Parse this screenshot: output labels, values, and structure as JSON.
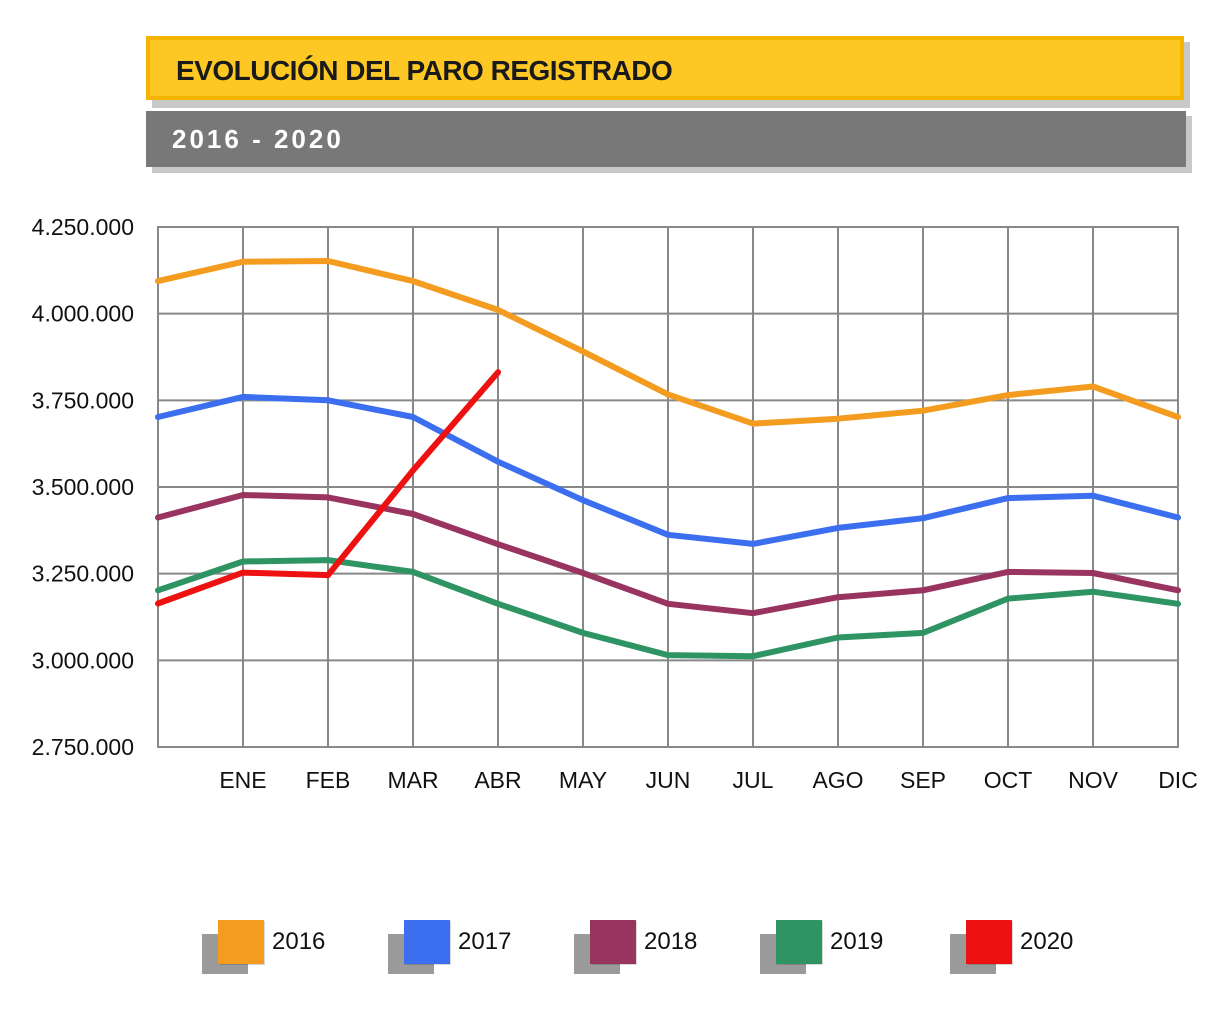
{
  "header": {
    "title": "EVOLUCIÓN DEL PARO REGISTRADO",
    "subtitle": "2016 - 2020"
  },
  "chart_data": {
    "type": "line",
    "title": "EVOLUCIÓN DEL PARO REGISTRADO",
    "subtitle": "2016 - 2020",
    "xlabel": "",
    "ylabel": "",
    "ylim": [
      2750000,
      4250000
    ],
    "y_ticks": [
      {
        "value": 2750000,
        "label": "2.750.000"
      },
      {
        "value": 3000000,
        "label": "3.000.000"
      },
      {
        "value": 3250000,
        "label": "3.250.000"
      },
      {
        "value": 3500000,
        "label": "3.500.000"
      },
      {
        "value": 3750000,
        "label": "3.750.000"
      },
      {
        "value": 4000000,
        "label": "4.000.000"
      },
      {
        "value": 4250000,
        "label": "4.250.000"
      }
    ],
    "categories": [
      "",
      "ENE",
      "FEB",
      "MAR",
      "ABR",
      "MAY",
      "JUN",
      "JUL",
      "AGO",
      "SEP",
      "OCT",
      "NOV",
      "DIC"
    ],
    "grid": true,
    "legend_position": "bottom",
    "series": [
      {
        "name": "2016",
        "color": "#f39c1f",
        "values": [
          4094000,
          4150000,
          4152000,
          4094000,
          4011000,
          3891000,
          3767000,
          3683000,
          3697000,
          3720000,
          3765000,
          3790000,
          3702000
        ]
      },
      {
        "name": "2017",
        "color": "#3b6ff0",
        "values": [
          3702000,
          3760000,
          3750000,
          3702000,
          3573000,
          3462000,
          3362000,
          3336000,
          3382000,
          3410000,
          3468000,
          3475000,
          3412000
        ]
      },
      {
        "name": "2018",
        "color": "#98345f",
        "values": [
          3412000,
          3477000,
          3470000,
          3422000,
          3335000,
          3252000,
          3163000,
          3136000,
          3182000,
          3202000,
          3255000,
          3252000,
          3202000
        ]
      },
      {
        "name": "2019",
        "color": "#2e9464",
        "values": [
          3202000,
          3285000,
          3289000,
          3255000,
          3163000,
          3079000,
          3015000,
          3012000,
          3066000,
          3079000,
          3178000,
          3198000,
          3163000
        ]
      },
      {
        "name": "2020",
        "color": "#ee1111",
        "values": [
          3164000,
          3253000,
          3246000,
          3548000,
          3831000,
          null,
          null,
          null,
          null,
          null,
          null,
          null,
          null
        ]
      }
    ]
  }
}
